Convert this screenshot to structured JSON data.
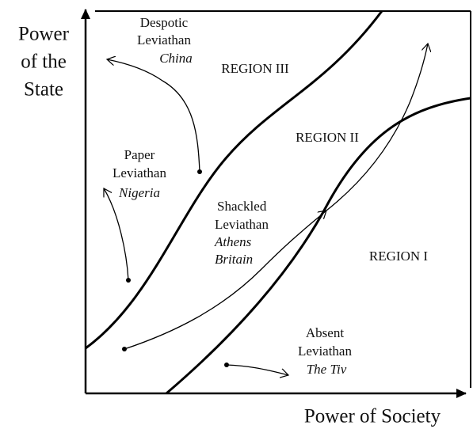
{
  "axes": {
    "y_label": [
      "Power",
      "of the",
      "State"
    ],
    "x_label": "Power of Society"
  },
  "regions": [
    "REGION III",
    "REGION II",
    "REGION I"
  ],
  "nodes": [
    {
      "lines": [
        "Despotic",
        "Leviathan"
      ],
      "example": [
        "China"
      ]
    },
    {
      "lines": [
        "Paper",
        "Leviathan"
      ],
      "example": [
        "Nigeria"
      ]
    },
    {
      "lines": [
        "Shackled",
        "Leviathan"
      ],
      "example": [
        "Athens",
        "Britain"
      ]
    },
    {
      "lines": [
        "Absent",
        "Leviathan"
      ],
      "example": [
        "The Tiv"
      ]
    }
  ]
}
